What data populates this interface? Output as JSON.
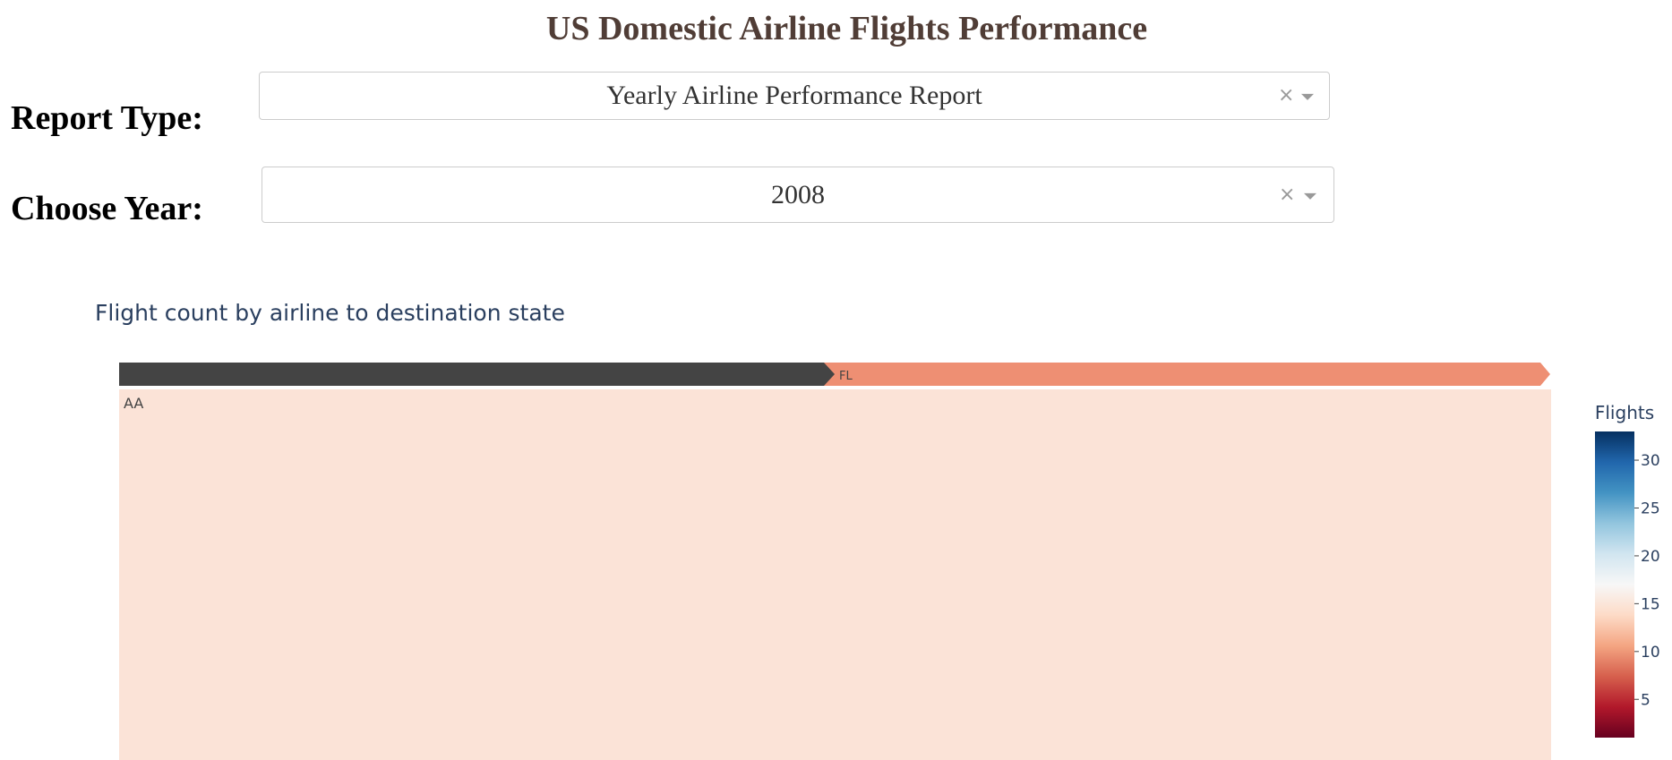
{
  "page": {
    "title": "US Domestic Airline Flights Performance"
  },
  "report_type": {
    "label": "Report Type:",
    "value": "Yearly Airline Performance Report",
    "clear_symbol": "×"
  },
  "year": {
    "label": "Choose Year:",
    "value": "2008",
    "clear_symbol": "×"
  },
  "chart_data": {
    "type": "treemap",
    "title": "Flight count by airline to destination state",
    "pathbar": [
      "",
      "FL"
    ],
    "tiles": [
      {
        "label": "AA",
        "value": 14
      }
    ],
    "colorbar": {
      "title": "Flights",
      "ticks": [
        5,
        10,
        15,
        20,
        25,
        30
      ],
      "range": [
        1,
        33
      ],
      "colorscale": [
        "#67001f",
        "#b2182b",
        "#d6604d",
        "#f4a582",
        "#fddbc7",
        "#f7f7f7",
        "#d1e5f0",
        "#92c5de",
        "#4393c3",
        "#2166ac",
        "#053061"
      ]
    },
    "colors": {
      "pathbar_root": "#444444",
      "pathbar_fl": "#ee8f73",
      "tile": "#fbe3d7"
    }
  }
}
